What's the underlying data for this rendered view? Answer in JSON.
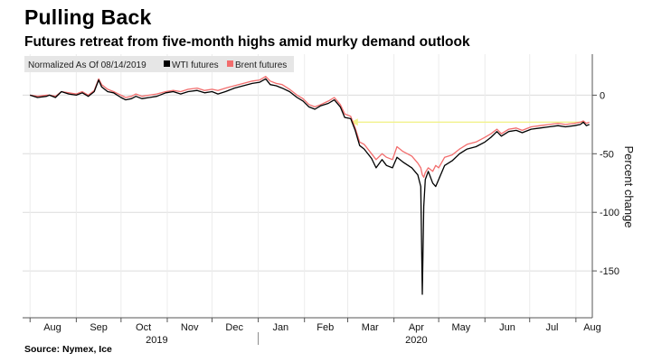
{
  "chart_data": {
    "type": "line",
    "title": "Pulling Back",
    "subtitle": "Futures retreat from five-month highs amid murky demand outlook",
    "source": "Source: Nymex, Ice",
    "legend_note": "Normalized As Of 08/14/2019",
    "ylabel": "Percent change",
    "ylim": [
      -190,
      35
    ],
    "yticks": [
      0,
      -50,
      -100,
      -150
    ],
    "months": [
      {
        "label": "Aug",
        "x": "2019-08-01"
      },
      {
        "label": "Sep",
        "x": "2019-09-01"
      },
      {
        "label": "Oct",
        "x": "2019-10-01"
      },
      {
        "label": "Nov",
        "x": "2019-11-01"
      },
      {
        "label": "Dec",
        "x": "2019-12-01"
      },
      {
        "label": "Jan",
        "x": "2020-01-01"
      },
      {
        "label": "Feb",
        "x": "2020-02-01"
      },
      {
        "label": "Mar",
        "x": "2020-03-01"
      },
      {
        "label": "Apr",
        "x": "2020-04-01"
      },
      {
        "label": "May",
        "x": "2020-05-01"
      },
      {
        "label": "Jun",
        "x": "2020-06-01"
      },
      {
        "label": "Jul",
        "x": "2020-07-01"
      },
      {
        "label": "Aug",
        "x": "2020-08-01"
      }
    ],
    "years": [
      {
        "label": "2019",
        "x": "2019-10-25"
      },
      {
        "label": "2020",
        "x": "2020-04-16"
      }
    ],
    "legend_placement": "top-left",
    "grid": true,
    "series": [
      {
        "name": "WTI futures",
        "color": "#000000",
        "points": [
          [
            "2019-08-01",
            0
          ],
          [
            "2019-08-06",
            -2
          ],
          [
            "2019-08-12",
            -1
          ],
          [
            "2019-08-14",
            0
          ],
          [
            "2019-08-18",
            -2
          ],
          [
            "2019-08-22",
            3
          ],
          [
            "2019-08-27",
            1
          ],
          [
            "2019-09-01",
            0
          ],
          [
            "2019-09-05",
            2
          ],
          [
            "2019-09-09",
            -1
          ],
          [
            "2019-09-13",
            3
          ],
          [
            "2019-09-16",
            13
          ],
          [
            "2019-09-18",
            7
          ],
          [
            "2019-09-22",
            3
          ],
          [
            "2019-09-26",
            2
          ],
          [
            "2019-10-01",
            -2
          ],
          [
            "2019-10-04",
            -4
          ],
          [
            "2019-10-08",
            -3
          ],
          [
            "2019-10-11",
            -1
          ],
          [
            "2019-10-15",
            -3
          ],
          [
            "2019-10-20",
            -2
          ],
          [
            "2019-10-25",
            -1
          ],
          [
            "2019-10-31",
            2
          ],
          [
            "2019-11-05",
            3
          ],
          [
            "2019-11-10",
            1
          ],
          [
            "2019-11-15",
            3
          ],
          [
            "2019-11-21",
            4
          ],
          [
            "2019-11-26",
            2
          ],
          [
            "2019-12-01",
            3
          ],
          [
            "2019-12-05",
            1
          ],
          [
            "2019-12-10",
            3
          ],
          [
            "2019-12-16",
            6
          ],
          [
            "2019-12-22",
            8
          ],
          [
            "2019-12-28",
            10
          ],
          [
            "2020-01-02",
            11
          ],
          [
            "2020-01-06",
            14
          ],
          [
            "2020-01-09",
            9
          ],
          [
            "2020-01-13",
            8
          ],
          [
            "2020-01-17",
            6
          ],
          [
            "2020-01-22",
            3
          ],
          [
            "2020-01-27",
            -2
          ],
          [
            "2020-01-31",
            -5
          ],
          [
            "2020-02-04",
            -10
          ],
          [
            "2020-02-08",
            -12
          ],
          [
            "2020-02-12",
            -9
          ],
          [
            "2020-02-17",
            -7
          ],
          [
            "2020-02-21",
            -4
          ],
          [
            "2020-02-25",
            -10
          ],
          [
            "2020-02-28",
            -19
          ],
          [
            "2020-03-03",
            -20
          ],
          [
            "2020-03-06",
            -30
          ],
          [
            "2020-03-09",
            -43
          ],
          [
            "2020-03-12",
            -46
          ],
          [
            "2020-03-17",
            -54
          ],
          [
            "2020-03-20",
            -62
          ],
          [
            "2020-03-24",
            -55
          ],
          [
            "2020-03-27",
            -60
          ],
          [
            "2020-03-31",
            -62
          ],
          [
            "2020-04-03",
            -53
          ],
          [
            "2020-04-07",
            -57
          ],
          [
            "2020-04-13",
            -62
          ],
          [
            "2020-04-17",
            -68
          ],
          [
            "2020-04-19",
            -78
          ],
          [
            "2020-04-20",
            -170
          ],
          [
            "2020-04-21",
            -95
          ],
          [
            "2020-04-22",
            -72
          ],
          [
            "2020-04-24",
            -65
          ],
          [
            "2020-04-27",
            -75
          ],
          [
            "2020-04-29",
            -78
          ],
          [
            "2020-05-01",
            -72
          ],
          [
            "2020-05-05",
            -60
          ],
          [
            "2020-05-10",
            -56
          ],
          [
            "2020-05-15",
            -50
          ],
          [
            "2020-05-20",
            -46
          ],
          [
            "2020-05-26",
            -44
          ],
          [
            "2020-06-01",
            -40
          ],
          [
            "2020-06-05",
            -36
          ],
          [
            "2020-06-09",
            -31
          ],
          [
            "2020-06-12",
            -35
          ],
          [
            "2020-06-17",
            -31
          ],
          [
            "2020-06-22",
            -30
          ],
          [
            "2020-06-26",
            -32
          ],
          [
            "2020-07-02",
            -29
          ],
          [
            "2020-07-08",
            -28
          ],
          [
            "2020-07-14",
            -27
          ],
          [
            "2020-07-20",
            -26
          ],
          [
            "2020-07-25",
            -27
          ],
          [
            "2020-07-31",
            -26
          ],
          [
            "2020-08-04",
            -25
          ],
          [
            "2020-08-06",
            -23
          ],
          [
            "2020-08-08",
            -26
          ],
          [
            "2020-08-10",
            -25
          ]
        ]
      },
      {
        "name": "Brent futures",
        "color": "#f26d6d",
        "points": [
          [
            "2019-08-01",
            0
          ],
          [
            "2019-08-06",
            -1
          ],
          [
            "2019-08-12",
            0
          ],
          [
            "2019-08-14",
            0
          ],
          [
            "2019-08-18",
            -1
          ],
          [
            "2019-08-22",
            3
          ],
          [
            "2019-08-27",
            2
          ],
          [
            "2019-09-01",
            1
          ],
          [
            "2019-09-05",
            3
          ],
          [
            "2019-09-09",
            0
          ],
          [
            "2019-09-13",
            4
          ],
          [
            "2019-09-16",
            14
          ],
          [
            "2019-09-18",
            9
          ],
          [
            "2019-09-22",
            5
          ],
          [
            "2019-09-26",
            3
          ],
          [
            "2019-10-01",
            0
          ],
          [
            "2019-10-04",
            -2
          ],
          [
            "2019-10-08",
            -1
          ],
          [
            "2019-10-11",
            1
          ],
          [
            "2019-10-15",
            -1
          ],
          [
            "2019-10-20",
            0
          ],
          [
            "2019-10-25",
            1
          ],
          [
            "2019-10-31",
            3
          ],
          [
            "2019-11-05",
            4
          ],
          [
            "2019-11-10",
            3
          ],
          [
            "2019-11-15",
            5
          ],
          [
            "2019-11-21",
            6
          ],
          [
            "2019-11-26",
            4
          ],
          [
            "2019-12-01",
            5
          ],
          [
            "2019-12-05",
            4
          ],
          [
            "2019-12-10",
            6
          ],
          [
            "2019-12-16",
            8
          ],
          [
            "2019-12-22",
            10
          ],
          [
            "2019-12-28",
            12
          ],
          [
            "2020-01-02",
            13
          ],
          [
            "2020-01-06",
            16
          ],
          [
            "2020-01-09",
            12
          ],
          [
            "2020-01-13",
            10
          ],
          [
            "2020-01-17",
            9
          ],
          [
            "2020-01-22",
            5
          ],
          [
            "2020-01-27",
            0
          ],
          [
            "2020-01-31",
            -3
          ],
          [
            "2020-02-04",
            -8
          ],
          [
            "2020-02-08",
            -10
          ],
          [
            "2020-02-12",
            -8
          ],
          [
            "2020-02-17",
            -5
          ],
          [
            "2020-02-21",
            -2
          ],
          [
            "2020-02-25",
            -8
          ],
          [
            "2020-02-28",
            -16
          ],
          [
            "2020-03-03",
            -18
          ],
          [
            "2020-03-06",
            -28
          ],
          [
            "2020-03-09",
            -40
          ],
          [
            "2020-03-12",
            -42
          ],
          [
            "2020-03-17",
            -50
          ],
          [
            "2020-03-20",
            -55
          ],
          [
            "2020-03-24",
            -50
          ],
          [
            "2020-03-27",
            -53
          ],
          [
            "2020-03-31",
            -55
          ],
          [
            "2020-04-03",
            -44
          ],
          [
            "2020-04-07",
            -48
          ],
          [
            "2020-04-13",
            -52
          ],
          [
            "2020-04-17",
            -58
          ],
          [
            "2020-04-19",
            -62
          ],
          [
            "2020-04-20",
            -68
          ],
          [
            "2020-04-21",
            -70
          ],
          [
            "2020-04-22",
            -66
          ],
          [
            "2020-04-24",
            -62
          ],
          [
            "2020-04-27",
            -65
          ],
          [
            "2020-04-29",
            -60
          ],
          [
            "2020-05-01",
            -62
          ],
          [
            "2020-05-05",
            -53
          ],
          [
            "2020-05-10",
            -51
          ],
          [
            "2020-05-15",
            -46
          ],
          [
            "2020-05-20",
            -42
          ],
          [
            "2020-05-26",
            -40
          ],
          [
            "2020-06-01",
            -36
          ],
          [
            "2020-06-05",
            -33
          ],
          [
            "2020-06-09",
            -29
          ],
          [
            "2020-06-12",
            -33
          ],
          [
            "2020-06-17",
            -29
          ],
          [
            "2020-06-22",
            -28
          ],
          [
            "2020-06-26",
            -30
          ],
          [
            "2020-07-02",
            -27
          ],
          [
            "2020-07-08",
            -26
          ],
          [
            "2020-07-14",
            -25
          ],
          [
            "2020-07-20",
            -24
          ],
          [
            "2020-07-25",
            -25
          ],
          [
            "2020-07-31",
            -24
          ],
          [
            "2020-08-04",
            -23
          ],
          [
            "2020-08-06",
            -22
          ],
          [
            "2020-08-08",
            -24
          ],
          [
            "2020-08-10",
            -23
          ]
        ]
      }
    ],
    "annotation": {
      "type": "arrow",
      "color": "#f2f28c",
      "from": [
        "2020-08-07",
        -23
      ],
      "to": [
        "2020-03-03",
        -23
      ]
    }
  }
}
